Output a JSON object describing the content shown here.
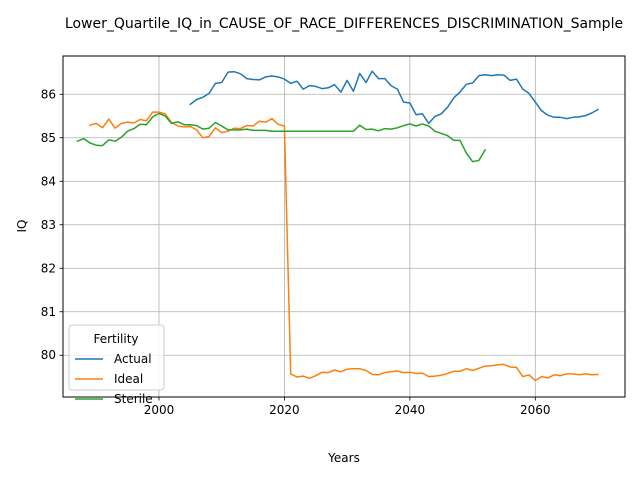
{
  "chart_data": {
    "type": "line",
    "title": "Lower_Quartile_IQ_in_CAUSE_OF_RACE_DIFFERENCES_DISCRIMINATION_Sample",
    "xlabel": "Years",
    "ylabel": "IQ",
    "xlim": [
      1984.7,
      2074.3
    ],
    "ylim": [
      79.04,
      86.88
    ],
    "xticks": [
      2000,
      2020,
      2040,
      2060
    ],
    "yticks": [
      80,
      81,
      82,
      83,
      84,
      85,
      86
    ],
    "grid": true,
    "legend": {
      "title": "Fertility",
      "placement": "lower-left"
    },
    "series": [
      {
        "name": "Actual",
        "color": "#1f77b4",
        "points": [
          [
            2005,
            85.77
          ],
          [
            2006,
            85.88
          ],
          [
            2007,
            85.93
          ],
          [
            2008,
            86.02
          ],
          [
            2009,
            86.25
          ],
          [
            2010,
            86.27
          ],
          [
            2011,
            86.51
          ],
          [
            2012,
            86.52
          ],
          [
            2013,
            86.47
          ],
          [
            2014,
            86.36
          ],
          [
            2015,
            86.34
          ],
          [
            2016,
            86.33
          ],
          [
            2017,
            86.4
          ],
          [
            2018,
            86.42
          ],
          [
            2019,
            86.4
          ],
          [
            2020,
            86.35
          ],
          [
            2021,
            86.25
          ],
          [
            2022,
            86.3
          ],
          [
            2023,
            86.12
          ],
          [
            2024,
            86.2
          ],
          [
            2025,
            86.18
          ],
          [
            2026,
            86.13
          ],
          [
            2027,
            86.15
          ],
          [
            2028,
            86.22
          ],
          [
            2029,
            86.05
          ],
          [
            2030,
            86.32
          ],
          [
            2031,
            86.07
          ],
          [
            2032,
            86.48
          ],
          [
            2033,
            86.27
          ],
          [
            2034,
            86.53
          ],
          [
            2035,
            86.36
          ],
          [
            2036,
            86.36
          ],
          [
            2037,
            86.2
          ],
          [
            2038,
            86.12
          ],
          [
            2039,
            85.82
          ],
          [
            2040,
            85.8
          ],
          [
            2041,
            85.53
          ],
          [
            2042,
            85.55
          ],
          [
            2043,
            85.33
          ],
          [
            2044,
            85.49
          ],
          [
            2045,
            85.55
          ],
          [
            2046,
            85.7
          ],
          [
            2047,
            85.92
          ],
          [
            2048,
            86.05
          ],
          [
            2049,
            86.23
          ],
          [
            2050,
            86.26
          ],
          [
            2051,
            86.43
          ],
          [
            2052,
            86.45
          ],
          [
            2053,
            86.43
          ],
          [
            2054,
            86.45
          ],
          [
            2055,
            86.44
          ],
          [
            2056,
            86.32
          ],
          [
            2057,
            86.35
          ],
          [
            2058,
            86.12
          ],
          [
            2059,
            86.02
          ],
          [
            2060,
            85.82
          ],
          [
            2061,
            85.62
          ],
          [
            2062,
            85.52
          ],
          [
            2063,
            85.47
          ],
          [
            2064,
            85.47
          ],
          [
            2065,
            85.44
          ],
          [
            2066,
            85.47
          ],
          [
            2067,
            85.48
          ],
          [
            2068,
            85.51
          ],
          [
            2069,
            85.57
          ],
          [
            2070,
            85.65
          ]
        ]
      },
      {
        "name": "Ideal",
        "color": "#ff7f0e",
        "points": [
          [
            1989,
            85.29
          ],
          [
            1990,
            85.33
          ],
          [
            1991,
            85.23
          ],
          [
            1992,
            85.43
          ],
          [
            1993,
            85.22
          ],
          [
            1994,
            85.33
          ],
          [
            1995,
            85.36
          ],
          [
            1996,
            85.34
          ],
          [
            1997,
            85.42
          ],
          [
            1998,
            85.39
          ],
          [
            1999,
            85.59
          ],
          [
            2000,
            85.59
          ],
          [
            2001,
            85.55
          ],
          [
            2002,
            85.35
          ],
          [
            2003,
            85.27
          ],
          [
            2004,
            85.25
          ],
          [
            2005,
            85.26
          ],
          [
            2006,
            85.18
          ],
          [
            2007,
            85.0
          ],
          [
            2008,
            85.03
          ],
          [
            2009,
            85.23
          ],
          [
            2010,
            85.12
          ],
          [
            2011,
            85.15
          ],
          [
            2012,
            85.22
          ],
          [
            2013,
            85.21
          ],
          [
            2014,
            85.28
          ],
          [
            2015,
            85.27
          ],
          [
            2016,
            85.38
          ],
          [
            2017,
            85.36
          ],
          [
            2018,
            85.44
          ],
          [
            2019,
            85.31
          ],
          [
            2020,
            85.27
          ],
          [
            2021,
            79.57
          ],
          [
            2022,
            79.5
          ],
          [
            2023,
            79.52
          ],
          [
            2024,
            79.47
          ],
          [
            2025,
            79.53
          ],
          [
            2026,
            79.61
          ],
          [
            2027,
            79.6
          ],
          [
            2028,
            79.66
          ],
          [
            2029,
            79.62
          ],
          [
            2030,
            79.68
          ],
          [
            2031,
            79.69
          ],
          [
            2032,
            79.69
          ],
          [
            2033,
            79.65
          ],
          [
            2034,
            79.56
          ],
          [
            2035,
            79.55
          ],
          [
            2036,
            79.6
          ],
          [
            2037,
            79.62
          ],
          [
            2038,
            79.64
          ],
          [
            2039,
            79.6
          ],
          [
            2040,
            79.61
          ],
          [
            2041,
            79.58
          ],
          [
            2042,
            79.59
          ],
          [
            2043,
            79.51
          ],
          [
            2044,
            79.52
          ],
          [
            2045,
            79.54
          ],
          [
            2046,
            79.58
          ],
          [
            2047,
            79.63
          ],
          [
            2048,
            79.63
          ],
          [
            2049,
            79.69
          ],
          [
            2050,
            79.65
          ],
          [
            2051,
            79.7
          ],
          [
            2052,
            79.75
          ],
          [
            2053,
            79.76
          ],
          [
            2054,
            79.78
          ],
          [
            2055,
            79.79
          ],
          [
            2056,
            79.73
          ],
          [
            2057,
            79.72
          ],
          [
            2058,
            79.51
          ],
          [
            2059,
            79.55
          ],
          [
            2060,
            79.42
          ],
          [
            2061,
            79.51
          ],
          [
            2062,
            79.48
          ],
          [
            2063,
            79.55
          ],
          [
            2064,
            79.53
          ],
          [
            2065,
            79.57
          ],
          [
            2066,
            79.57
          ],
          [
            2067,
            79.55
          ],
          [
            2068,
            79.57
          ],
          [
            2069,
            79.55
          ],
          [
            2070,
            79.56
          ]
        ]
      },
      {
        "name": "Sterile",
        "color": "#2ca02c",
        "points": [
          [
            1987,
            84.92
          ],
          [
            1988,
            84.98
          ],
          [
            1989,
            84.88
          ],
          [
            1990,
            84.83
          ],
          [
            1991,
            84.82
          ],
          [
            1992,
            84.95
          ],
          [
            1993,
            84.92
          ],
          [
            1994,
            85.01
          ],
          [
            1995,
            85.15
          ],
          [
            1996,
            85.21
          ],
          [
            1997,
            85.31
          ],
          [
            1998,
            85.3
          ],
          [
            1999,
            85.48
          ],
          [
            2000,
            85.56
          ],
          [
            2001,
            85.5
          ],
          [
            2002,
            85.33
          ],
          [
            2003,
            85.37
          ],
          [
            2004,
            85.3
          ],
          [
            2005,
            85.3
          ],
          [
            2006,
            85.28
          ],
          [
            2007,
            85.2
          ],
          [
            2008,
            85.22
          ],
          [
            2009,
            85.35
          ],
          [
            2010,
            85.27
          ],
          [
            2011,
            85.18
          ],
          [
            2012,
            85.18
          ],
          [
            2013,
            85.18
          ],
          [
            2014,
            85.2
          ],
          [
            2015,
            85.17
          ],
          [
            2016,
            85.17
          ],
          [
            2017,
            85.17
          ],
          [
            2018,
            85.15
          ],
          [
            2019,
            85.15
          ],
          [
            2020,
            85.15
          ],
          [
            2021,
            85.15
          ],
          [
            2022,
            85.15
          ],
          [
            2023,
            85.15
          ],
          [
            2024,
            85.15
          ],
          [
            2025,
            85.15
          ],
          [
            2026,
            85.15
          ],
          [
            2027,
            85.15
          ],
          [
            2028,
            85.15
          ],
          [
            2029,
            85.15
          ],
          [
            2030,
            85.15
          ],
          [
            2031,
            85.15
          ],
          [
            2032,
            85.29
          ],
          [
            2033,
            85.19
          ],
          [
            2034,
            85.2
          ],
          [
            2035,
            85.16
          ],
          [
            2036,
            85.21
          ],
          [
            2037,
            85.2
          ],
          [
            2038,
            85.23
          ],
          [
            2039,
            85.28
          ],
          [
            2040,
            85.32
          ],
          [
            2041,
            85.27
          ],
          [
            2042,
            85.32
          ],
          [
            2043,
            85.27
          ],
          [
            2044,
            85.15
          ],
          [
            2045,
            85.1
          ],
          [
            2046,
            85.05
          ],
          [
            2047,
            84.94
          ],
          [
            2048,
            84.94
          ],
          [
            2049,
            84.65
          ],
          [
            2050,
            84.45
          ],
          [
            2051,
            84.48
          ],
          [
            2052,
            84.72
          ]
        ]
      }
    ]
  }
}
